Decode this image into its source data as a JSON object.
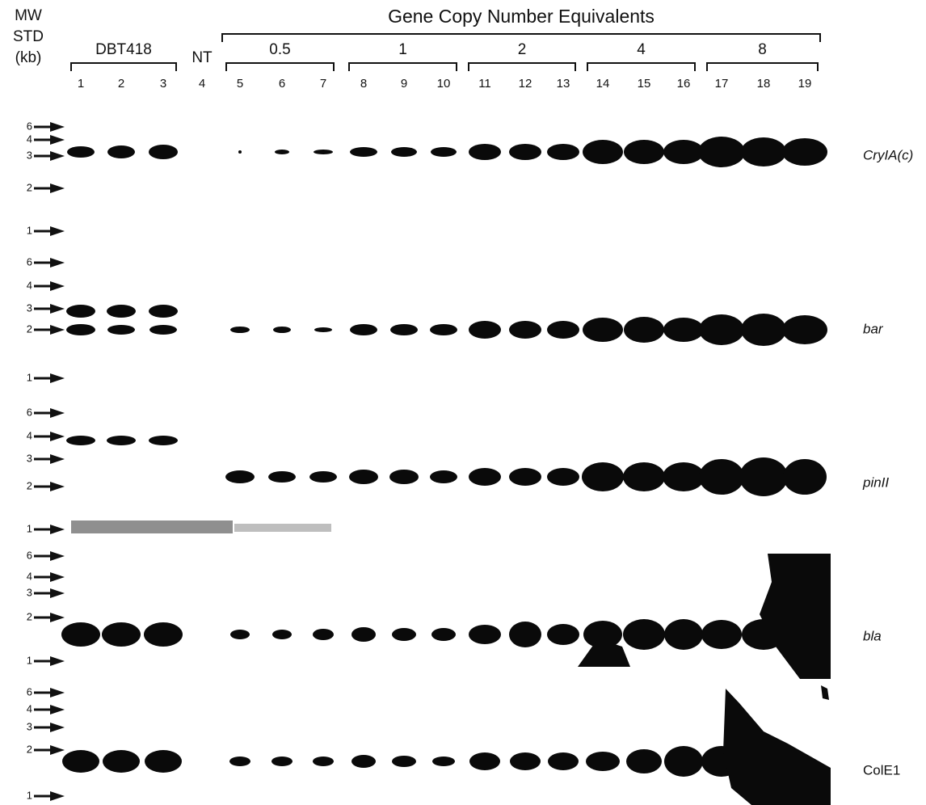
{
  "header": {
    "mw": "MW",
    "std": "STD",
    "kb": "(kb)",
    "title": "Gene Copy Number Equivalents",
    "dbt": "DBT418",
    "nt": "NT"
  },
  "groups": [
    "0.5",
    "1",
    "2",
    "4",
    "8"
  ],
  "lanes": [
    "1",
    "2",
    "3",
    "4",
    "5",
    "6",
    "7",
    "8",
    "9",
    "10",
    "11",
    "12",
    "13",
    "14",
    "15",
    "16",
    "17",
    "18",
    "19"
  ],
  "panels": [
    {
      "gene": "CryIA(c)",
      "markers": [
        "6",
        "4",
        "3",
        "2",
        "1"
      ]
    },
    {
      "gene": "bar",
      "markers": [
        "6",
        "4",
        "3",
        "2",
        "1"
      ]
    },
    {
      "gene": "pinII",
      "markers": [
        "6",
        "4",
        "3",
        "2",
        "1"
      ]
    },
    {
      "gene": "bla",
      "markers": [
        "6",
        "4",
        "3",
        "2",
        "1"
      ]
    },
    {
      "gene": "ColE1",
      "markers": [
        "6",
        "4",
        "3",
        "2",
        "1"
      ]
    }
  ]
}
